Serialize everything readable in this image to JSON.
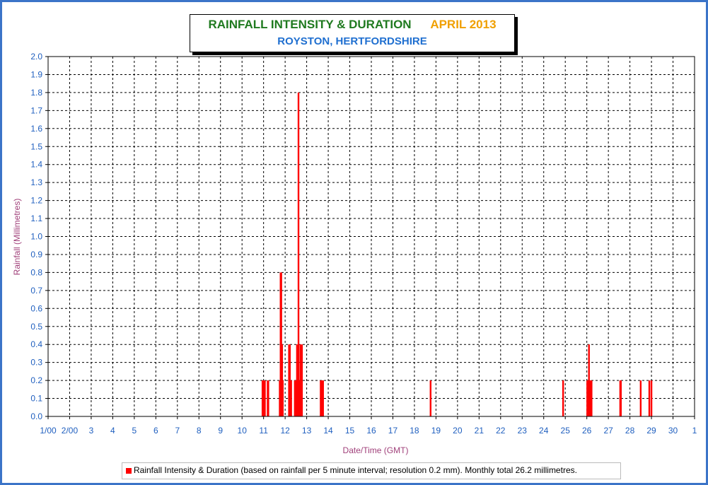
{
  "colors": {
    "bar": "#ff0000",
    "title_main": "#1f7a1f",
    "title_month": "#f0a000",
    "subtitle": "#1f6fd0",
    "ticks": "#1f5fbf",
    "axis_title": "#a0407a",
    "frame": "#3b74c8"
  },
  "title": {
    "main": "RAINFALL INTENSITY & DURATION",
    "month": "APRIL 2013",
    "location": "ROYSTON, HERTFORDSHIRE"
  },
  "legend": {
    "text": "Rainfall Intensity & Duration (based on rainfall per 5 minute interval; resolution 0.2 mm). Monthly total 26.2 millimetres."
  },
  "chart_data": {
    "type": "bar",
    "xlabel": "Date/Time (GMT)",
    "ylabel": "Rainfall (Millimetres)",
    "ylim": [
      0,
      2.0
    ],
    "yticks": [
      "0.0",
      "0.1",
      "0.2",
      "0.3",
      "0.4",
      "0.5",
      "0.6",
      "0.7",
      "0.8",
      "0.9",
      "1.0",
      "1.1",
      "1.2",
      "1.3",
      "1.4",
      "1.5",
      "1.6",
      "1.7",
      "1.8",
      "1.9",
      "2.0"
    ],
    "xticks": [
      "1/00",
      "2/00",
      "3",
      "4",
      "5",
      "6",
      "7",
      "8",
      "9",
      "10",
      "11",
      "12",
      "13",
      "14",
      "15",
      "16",
      "17",
      "18",
      "19",
      "20",
      "21",
      "22",
      "23",
      "24",
      "25",
      "26",
      "27",
      "28",
      "29",
      "30",
      "1"
    ],
    "grid": true,
    "legend_position": "bottom",
    "points": [
      {
        "day": 10.95,
        "value": 0.2
      },
      {
        "day": 10.98,
        "value": 0.2
      },
      {
        "day": 11.0,
        "value": 0.2
      },
      {
        "day": 11.03,
        "value": 0.2
      },
      {
        "day": 11.06,
        "value": 0.2
      },
      {
        "day": 11.19,
        "value": 0.2
      },
      {
        "day": 11.22,
        "value": 0.2
      },
      {
        "day": 11.75,
        "value": 0.2
      },
      {
        "day": 11.79,
        "value": 0.8
      },
      {
        "day": 11.82,
        "value": 0.8
      },
      {
        "day": 11.86,
        "value": 0.4
      },
      {
        "day": 11.89,
        "value": 0.2
      },
      {
        "day": 12.18,
        "value": 0.4
      },
      {
        "day": 12.22,
        "value": 0.4
      },
      {
        "day": 12.28,
        "value": 0.2
      },
      {
        "day": 12.45,
        "value": 0.2
      },
      {
        "day": 12.5,
        "value": 0.2
      },
      {
        "day": 12.55,
        "value": 0.4
      },
      {
        "day": 12.62,
        "value": 1.8
      },
      {
        "day": 12.66,
        "value": 0.2
      },
      {
        "day": 12.71,
        "value": 0.4
      },
      {
        "day": 12.78,
        "value": 0.4
      },
      {
        "day": 13.65,
        "value": 0.2
      },
      {
        "day": 13.68,
        "value": 0.2
      },
      {
        "day": 13.72,
        "value": 0.2
      },
      {
        "day": 13.76,
        "value": 0.2
      },
      {
        "day": 18.75,
        "value": 0.2
      },
      {
        "day": 24.9,
        "value": 0.2
      },
      {
        "day": 26.02,
        "value": 0.2
      },
      {
        "day": 26.06,
        "value": 0.2
      },
      {
        "day": 26.1,
        "value": 0.4
      },
      {
        "day": 26.14,
        "value": 0.2
      },
      {
        "day": 26.18,
        "value": 0.2
      },
      {
        "day": 26.22,
        "value": 0.2
      },
      {
        "day": 27.55,
        "value": 0.2
      },
      {
        "day": 27.58,
        "value": 0.2
      },
      {
        "day": 28.5,
        "value": 0.2
      },
      {
        "day": 28.9,
        "value": 0.2
      },
      {
        "day": 29.0,
        "value": 0.2
      }
    ]
  }
}
